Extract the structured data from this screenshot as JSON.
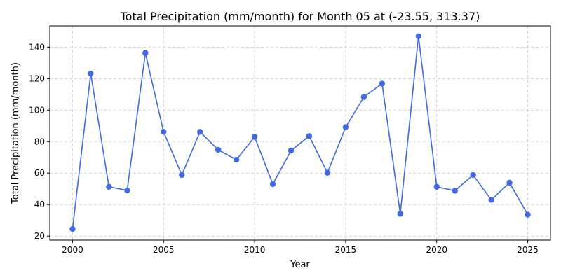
{
  "chart_data": {
    "type": "line",
    "title": "Total Precipitation (mm/month) for Month 05 at (-23.55, 313.37)",
    "xlabel": "Year",
    "ylabel": "Total Precipitation (mm/month)",
    "x": [
      2000,
      2001,
      2002,
      2003,
      2004,
      2005,
      2006,
      2007,
      2008,
      2009,
      2010,
      2011,
      2012,
      2013,
      2014,
      2015,
      2016,
      2017,
      2018,
      2019,
      2020,
      2021,
      2022,
      2023,
      2024,
      2025
    ],
    "series": [
      {
        "values": [
          24.5,
          123.2,
          51.3,
          49.0,
          136.3,
          86.2,
          58.8,
          86.2,
          74.8,
          68.5,
          83.0,
          53.0,
          74.3,
          83.5,
          60.2,
          89.2,
          108.3,
          116.8,
          34.1,
          146.9,
          51.3,
          48.8,
          58.8,
          43.0,
          53.9,
          33.6
        ],
        "color": "#4169e1"
      }
    ],
    "xticks": [
      2000,
      2005,
      2010,
      2015,
      2020,
      2025
    ],
    "yticks": [
      20,
      40,
      60,
      80,
      100,
      120,
      140
    ],
    "xlim": [
      1998.75,
      2026.25
    ],
    "ylim": [
      17.4,
      153.5
    ],
    "grid": true,
    "marker": "circle"
  }
}
